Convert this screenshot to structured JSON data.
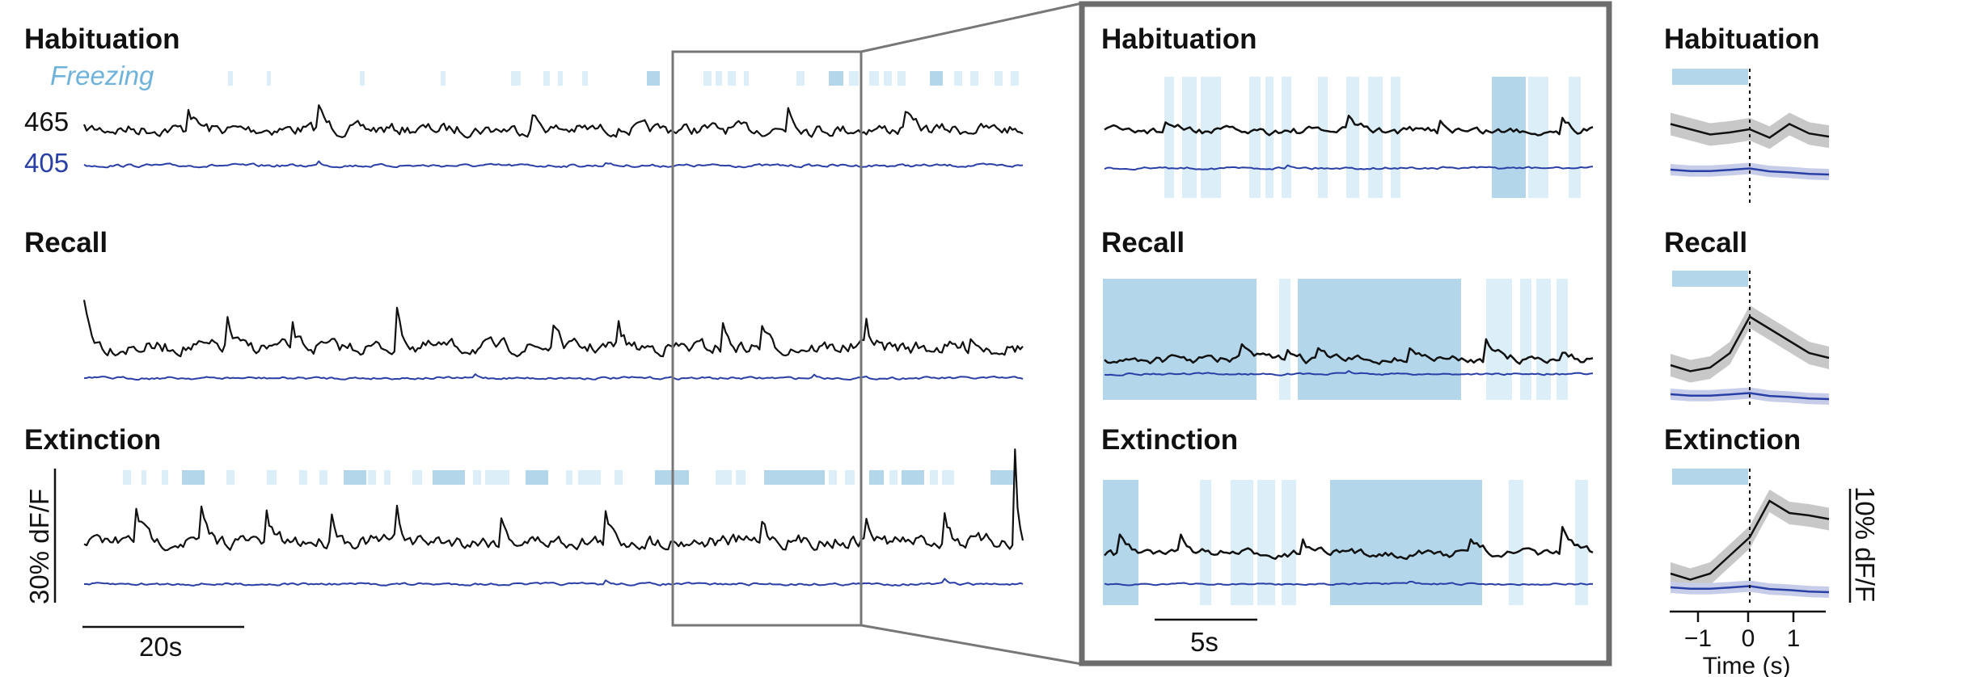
{
  "figure": {
    "left_titles": [
      "Habituation",
      "Recall",
      "Extinction"
    ],
    "zoom_titles": [
      "Habituation",
      "Recall",
      "Extinction"
    ],
    "peth_titles": [
      "Habituation",
      "Recall",
      "Extinction"
    ],
    "freezing_label": "Freezing",
    "signal_label": "465",
    "control_label": "405",
    "left_y_scale": "30% dF/F",
    "left_x_scale": "20s",
    "zoom_x_scale": "5s",
    "peth_y_scale": "10% dF/F",
    "peth_xlabel": "Time (s)",
    "peth_xticks": [
      "−1",
      "0",
      "1"
    ]
  },
  "colors": {
    "signal": "#111111",
    "control": "#2a3fa6",
    "freezing_light": "#dceff9",
    "freezing_dark": "#b3d6ea",
    "freezing_text": "#6fb3dc",
    "frame": "#777777",
    "sem_signal": "#c8c8c8",
    "sem_control": "#c7cde9"
  },
  "chart_data": [
    {
      "type": "line",
      "panel": "full-session traces",
      "ylabel": "30% dF/F",
      "xlabel": "20s",
      "series": [
        {
          "name": "465",
          "values": [
            0.53,
            0.5,
            0.6,
            0.53,
            0.45,
            0.55,
            0.5,
            0.58,
            0.65,
            0.52,
            0.5
          ]
        },
        {
          "name": "405",
          "values": [
            0.14,
            0.15,
            0.13,
            0.14,
            0.15,
            0.14,
            0.13,
            0.14,
            0.15,
            0.14,
            0.14
          ]
        }
      ]
    },
    {
      "type": "line",
      "panel": "zoomed traces",
      "xlabel": "5s",
      "series": [
        {
          "name": "465",
          "values": [
            0.6,
            0.7,
            0.55,
            0.62,
            0.5,
            0.58,
            0.45,
            0.5
          ]
        },
        {
          "name": "405",
          "values": [
            0.25,
            0.27,
            0.24,
            0.26,
            0.27,
            0.26,
            0.27,
            0.26
          ]
        }
      ]
    },
    {
      "type": "line",
      "panel": "peri-event averages",
      "xlabel": "Time (s)",
      "ylabel": "10% dF/F",
      "x": [
        -1.6,
        -1.2,
        -0.8,
        -0.4,
        0,
        0.4,
        0.8,
        1.2,
        1.6
      ],
      "series": [
        {
          "name": "Habituation 465",
          "values": [
            0.05,
            0.0,
            -0.05,
            -0.03,
            0.0,
            -0.08,
            0.05,
            -0.04,
            -0.07
          ]
        },
        {
          "name": "Recall 465",
          "values": [
            0.0,
            -0.05,
            -0.02,
            0.1,
            0.4,
            0.3,
            0.2,
            0.1,
            0.06
          ]
        },
        {
          "name": "Extinction 465",
          "values": [
            0.0,
            -0.05,
            0.0,
            0.15,
            0.3,
            0.6,
            0.5,
            0.48,
            0.45
          ]
        }
      ]
    }
  ]
}
